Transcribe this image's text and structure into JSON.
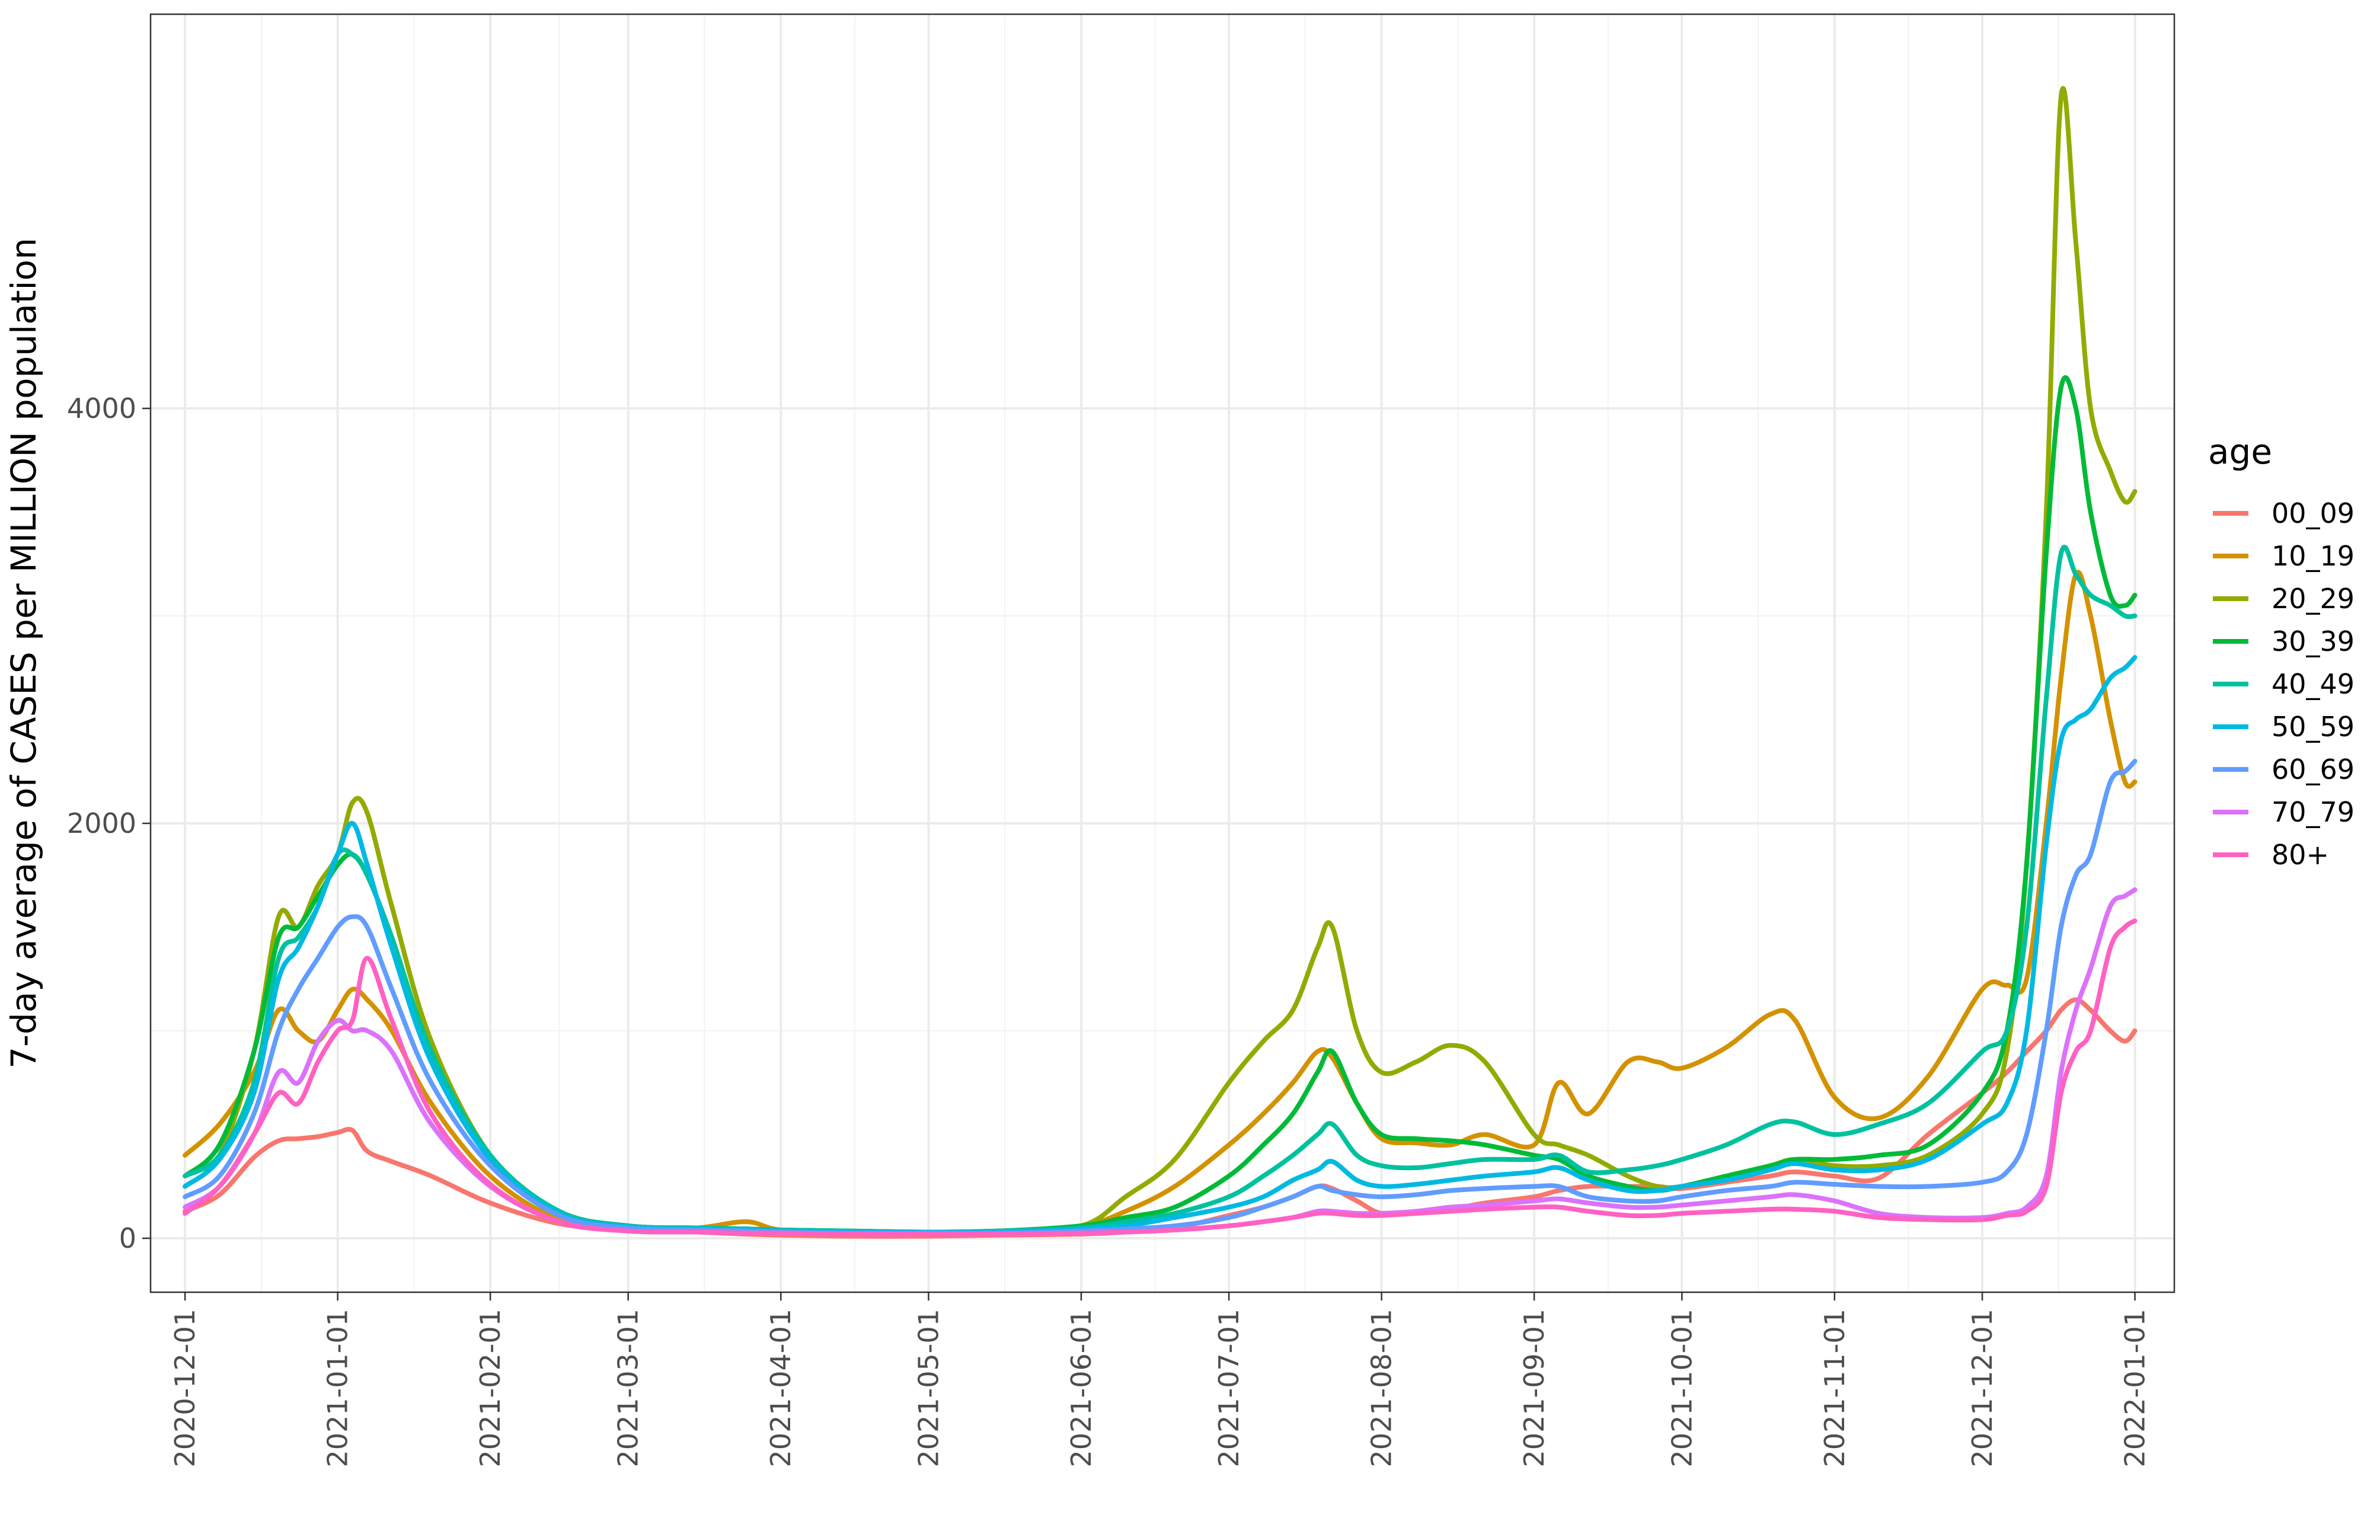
{
  "chart_data": {
    "type": "line",
    "title": "",
    "xlabel": "",
    "ylabel": "7-day average of CASES per MILLION population",
    "x_ticks": [
      "2020-12-01",
      "2021-01-01",
      "2021-02-01",
      "2021-03-01",
      "2021-04-01",
      "2021-05-01",
      "2021-06-01",
      "2021-07-01",
      "2021-08-01",
      "2021-09-01",
      "2021-10-01",
      "2021-11-01",
      "2021-12-01",
      "2022-01-01"
    ],
    "y_ticks": [
      0,
      2000,
      4000
    ],
    "xlim": [
      "2020-11-24",
      "2022-01-09"
    ],
    "ylim": [
      -260,
      5900
    ],
    "grid": true,
    "legend_title": "age",
    "legend_position": "right",
    "x": [
      "2020-12-01",
      "2020-12-08",
      "2020-12-15",
      "2020-12-20",
      "2020-12-24",
      "2020-12-28",
      "2021-01-01",
      "2021-01-04",
      "2021-01-07",
      "2021-01-12",
      "2021-01-20",
      "2021-02-01",
      "2021-02-15",
      "2021-03-01",
      "2021-03-15",
      "2021-03-25",
      "2021-04-01",
      "2021-04-15",
      "2021-05-01",
      "2021-05-15",
      "2021-06-01",
      "2021-06-10",
      "2021-06-20",
      "2021-07-01",
      "2021-07-08",
      "2021-07-14",
      "2021-07-19",
      "2021-07-22",
      "2021-07-27",
      "2021-08-01",
      "2021-08-08",
      "2021-08-15",
      "2021-08-22",
      "2021-09-01",
      "2021-09-06",
      "2021-09-12",
      "2021-09-20",
      "2021-09-26",
      "2021-10-01",
      "2021-10-10",
      "2021-10-19",
      "2021-10-24",
      "2021-11-01",
      "2021-11-10",
      "2021-11-20",
      "2021-12-01",
      "2021-12-06",
      "2021-12-10",
      "2021-12-14",
      "2021-12-17",
      "2021-12-20",
      "2021-12-23",
      "2021-12-27",
      "2021-12-30",
      "2022-01-01"
    ],
    "series": [
      {
        "name": "00_09",
        "color": "#F8766D",
        "values": [
          130,
          210,
          390,
          470,
          480,
          490,
          510,
          520,
          420,
          370,
          300,
          170,
          70,
          40,
          30,
          20,
          15,
          10,
          10,
          15,
          20,
          30,
          50,
          110,
          150,
          200,
          250,
          240,
          180,
          120,
          130,
          140,
          170,
          200,
          230,
          250,
          250,
          250,
          240,
          270,
          300,
          320,
          300,
          290,
          500,
          700,
          800,
          900,
          1000,
          1100,
          1150,
          1100,
          1000,
          950,
          1000
        ]
      },
      {
        "name": "10_19",
        "color": "#D39200",
        "values": [
          400,
          550,
          800,
          1100,
          1000,
          950,
          1100,
          1200,
          1150,
          1000,
          650,
          300,
          90,
          40,
          50,
          80,
          40,
          35,
          30,
          35,
          60,
          130,
          250,
          450,
          600,
          750,
          900,
          870,
          650,
          480,
          460,
          450,
          500,
          450,
          750,
          600,
          850,
          850,
          820,
          920,
          1080,
          1050,
          680,
          580,
          780,
          1200,
          1220,
          1250,
          2000,
          2700,
          3200,
          3000,
          2500,
          2200,
          2200
        ]
      },
      {
        "name": "20_29",
        "color": "#93AA00",
        "values": [
          250,
          400,
          900,
          1550,
          1500,
          1700,
          1850,
          2100,
          2050,
          1600,
          950,
          400,
          130,
          60,
          50,
          45,
          40,
          35,
          30,
          35,
          60,
          200,
          380,
          750,
          950,
          1100,
          1400,
          1500,
          1000,
          800,
          850,
          930,
          850,
          500,
          450,
          400,
          300,
          250,
          250,
          300,
          350,
          380,
          350,
          350,
          400,
          600,
          900,
          1800,
          3500,
          5500,
          4800,
          4000,
          3700,
          3550,
          3600
        ]
      },
      {
        "name": "30_39",
        "color": "#00BA38",
        "values": [
          300,
          450,
          900,
          1450,
          1500,
          1650,
          1800,
          1850,
          1750,
          1450,
          900,
          400,
          130,
          60,
          50,
          45,
          40,
          35,
          30,
          35,
          60,
          100,
          150,
          300,
          450,
          600,
          800,
          900,
          650,
          500,
          480,
          470,
          450,
          400,
          380,
          300,
          250,
          230,
          250,
          300,
          350,
          380,
          380,
          400,
          450,
          700,
          1000,
          1800,
          3300,
          4100,
          4000,
          3500,
          3100,
          3050,
          3100
        ]
      },
      {
        "name": "40_49",
        "color": "#00C19F",
        "values": [
          300,
          400,
          750,
          1350,
          1450,
          1600,
          1850,
          1850,
          1750,
          1450,
          900,
          400,
          130,
          60,
          50,
          45,
          40,
          35,
          30,
          35,
          50,
          80,
          120,
          200,
          300,
          400,
          500,
          550,
          400,
          350,
          340,
          360,
          380,
          380,
          400,
          320,
          330,
          350,
          380,
          450,
          550,
          560,
          500,
          550,
          650,
          900,
          1000,
          1500,
          2600,
          3300,
          3200,
          3100,
          3050,
          3000,
          3000
        ]
      },
      {
        "name": "50_59",
        "color": "#00B9E3",
        "values": [
          250,
          380,
          700,
          1250,
          1400,
          1600,
          1850,
          2000,
          1800,
          1400,
          850,
          380,
          120,
          55,
          45,
          40,
          35,
          30,
          30,
          30,
          45,
          60,
          100,
          150,
          200,
          280,
          330,
          370,
          280,
          250,
          260,
          280,
          300,
          320,
          340,
          280,
          230,
          230,
          250,
          280,
          330,
          360,
          330,
          330,
          380,
          550,
          650,
          1000,
          1900,
          2400,
          2500,
          2550,
          2700,
          2750,
          2800
        ]
      },
      {
        "name": "60_69",
        "color": "#619CFF",
        "values": [
          200,
          300,
          600,
          1000,
          1200,
          1350,
          1500,
          1550,
          1500,
          1200,
          750,
          350,
          110,
          50,
          40,
          35,
          30,
          25,
          25,
          25,
          35,
          45,
          60,
          100,
          150,
          200,
          250,
          230,
          210,
          200,
          210,
          230,
          240,
          250,
          250,
          200,
          180,
          180,
          200,
          230,
          250,
          270,
          260,
          250,
          250,
          270,
          320,
          500,
          1000,
          1500,
          1750,
          1850,
          2200,
          2250,
          2300
        ]
      },
      {
        "name": "70_79",
        "color": "#DB72FB",
        "values": [
          150,
          250,
          500,
          800,
          750,
          950,
          1050,
          1000,
          1000,
          900,
          550,
          250,
          80,
          35,
          30,
          25,
          25,
          20,
          20,
          20,
          25,
          30,
          40,
          60,
          80,
          100,
          130,
          130,
          120,
          120,
          130,
          150,
          160,
          180,
          190,
          170,
          150,
          150,
          160,
          180,
          200,
          210,
          180,
          120,
          100,
          100,
          120,
          150,
          300,
          800,
          1100,
          1300,
          1600,
          1650,
          1680
        ]
      },
      {
        "name": "80+",
        "color": "#FF61C3",
        "values": [
          120,
          250,
          500,
          700,
          650,
          850,
          1000,
          1050,
          1350,
          1050,
          600,
          260,
          80,
          35,
          30,
          25,
          25,
          20,
          20,
          20,
          25,
          30,
          40,
          60,
          80,
          100,
          120,
          120,
          110,
          110,
          120,
          130,
          140,
          150,
          150,
          130,
          110,
          110,
          120,
          130,
          140,
          140,
          130,
          100,
          90,
          90,
          110,
          130,
          250,
          700,
          900,
          1000,
          1400,
          1500,
          1530
        ]
      }
    ]
  }
}
